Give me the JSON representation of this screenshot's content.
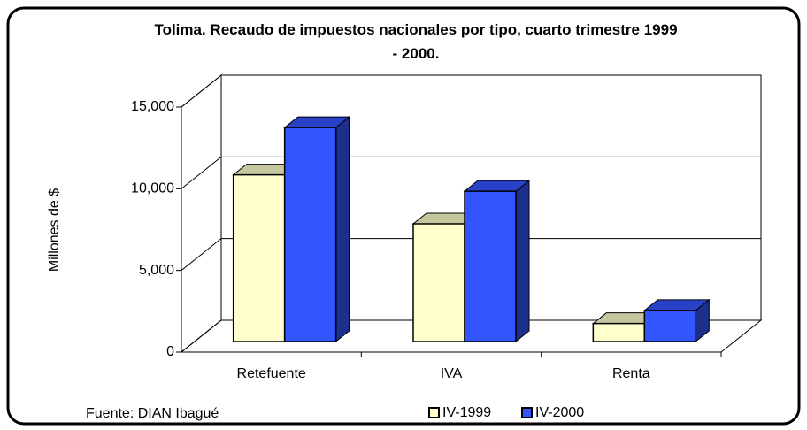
{
  "chart_data": {
    "type": "bar3d",
    "title": "Tolima. Recaudo de impuestos nacionales por tipo, cuarto trimestre 1999 - 2000.",
    "y_label": "Millones de $",
    "source": "Fuente: DIAN Ibagué",
    "categories": [
      "Retefuente",
      "IVA",
      "Renta"
    ],
    "series": [
      {
        "name": "IV-1999",
        "color": "#ffffcc",
        "values": [
          10200,
          7200,
          1100
        ]
      },
      {
        "name": "IV-2000",
        "color": "#3355ff",
        "values": [
          13100,
          9200,
          1900
        ]
      }
    ],
    "ylim": [
      0,
      15000
    ],
    "yticks": [
      0,
      {
        "value": 5000,
        "label": "5,000"
      },
      {
        "value": 10000,
        "label": "10,000"
      },
      {
        "value": 15000,
        "label": "15,000"
      }
    ],
    "grid": true
  }
}
